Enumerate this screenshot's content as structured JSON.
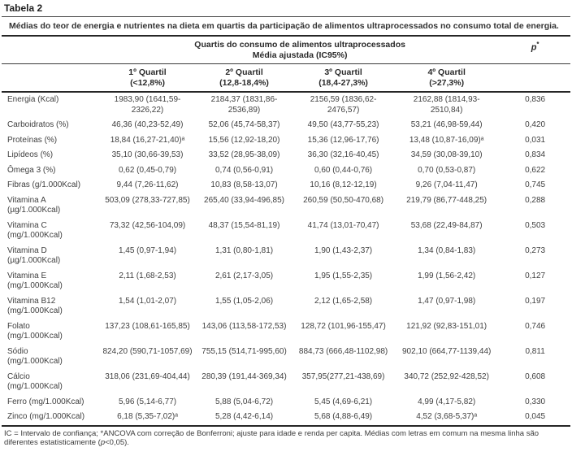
{
  "title": "Tabela 2",
  "caption": "Médias do teor de energia e nutrientes na dieta em quartis da participação de alimentos ultraprocessados no consumo total de energia.",
  "header": {
    "group_line1": "Quartis do consumo de alimentos ultraprocessados",
    "group_line2": "Média ajustada (IC95%)",
    "p_label": "p",
    "p_star": "*",
    "columns": [
      {
        "line1": "1º Quartil",
        "line2": "(<12,8%)"
      },
      {
        "line1": "2º Quartil",
        "line2": "(12,8-18,4%)"
      },
      {
        "line1": "3º Quartil",
        "line2": "(18,4-27,3%)"
      },
      {
        "line1": "4º Quartil",
        "line2": "(>27,3%)"
      }
    ]
  },
  "rows": [
    {
      "label": "Energia (Kcal)",
      "q1": "1983,90 (1641,59-\n2326,22)",
      "q2": "2184,37 (1831,86-\n2536,89)",
      "q3": "2156,59 (1836,62-\n2476,57)",
      "q4": "2162,88 (1814,93-\n2510,84)",
      "p": "0,836"
    },
    {
      "label": "Carboidratos (%)",
      "q1": "46,36 (40,23-52,49)",
      "q2": "52,06 (45,74-58,37)",
      "q3": "49,50 (43,77-55,23)",
      "q4": "53,21 (46,98-59,44)",
      "p": "0,420"
    },
    {
      "label": "Proteínas (%)",
      "q1": "18,84 (16,27-21,40)ᵃ",
      "q2": "15,56 (12,92-18,20)",
      "q3": "15,36 (12,96-17,76)",
      "q4": "13,48 (10,87-16,09)ᵃ",
      "p": "0,031"
    },
    {
      "label": "Lipídeos (%)",
      "q1": "35,10 (30,66-39,53)",
      "q2": "33,52 (28,95-38,09)",
      "q3": "36,30 (32,16-40,45)",
      "q4": "34,59 (30,08-39,10)",
      "p": "0,834"
    },
    {
      "label": "Ômega 3 (%)",
      "q1": "0,62 (0,45-0,79)",
      "q2": "0,74 (0,56-0,91)",
      "q3": "0,60 (0,44-0,76)",
      "q4": "0,70 (0,53-0,87)",
      "p": "0,622"
    },
    {
      "label": "Fibras (g/1.000Kcal)",
      "q1": "9,44 (7,26-11,62)",
      "q2": "10,83 (8,58-13,07)",
      "q3": "10,16 (8,12-12,19)",
      "q4": "9,26 (7,04-11,47)",
      "p": "0,745"
    },
    {
      "label": "Vitamina A\n(µg/1.000Kcal)",
      "q1": "503,09 (278,33-727,85)",
      "q2": "265,40 (33,94-496,85)",
      "q3": "260,59 (50,50-470,68)",
      "q4": "219,79 (86,77-448,25)",
      "p": "0,288"
    },
    {
      "label": "Vitamina C\n(mg/1.000Kcal)",
      "q1": "73,32 (42,56-104,09)",
      "q2": "48,37 (15,54-81,19)",
      "q3": "41,74 (13,01-70,47)",
      "q4": "53,68 (22,49-84,87)",
      "p": "0,503"
    },
    {
      "label": "Vitamina D\n(µg/1.000Kcal)",
      "q1": "1,45 (0,97-1,94)",
      "q2": "1,31 (0,80-1,81)",
      "q3": "1,90 (1,43-2,37)",
      "q4": "1,34 (0,84-1,83)",
      "p": "0,273"
    },
    {
      "label": "Vitamina E\n(mg/1.000Kcal)",
      "q1": "2,11 (1,68-2,53)",
      "q2": "2,61 (2,17-3,05)",
      "q3": "1,95 (1,55-2,35)",
      "q4": "1,99 (1,56-2,42)",
      "p": "0,127"
    },
    {
      "label": "Vitamina B12\n(mg/1.000Kcal)",
      "q1": "1,54 (1,01-2,07)",
      "q2": "1,55 (1,05-2,06)",
      "q3": "2,12 (1,65-2,58)",
      "q4": "1,47 (0,97-1,98)",
      "p": "0,197"
    },
    {
      "label": "Folato\n(mg/1.000Kcal)",
      "q1": "137,23 (108,61-165,85)",
      "q2": "143,06 (113,58-172,53)",
      "q3": "128,72 (101,96-155,47)",
      "q4": "121,92 (92,83-151,01)",
      "p": "0,746"
    },
    {
      "label": "Sódio\n(mg/1.000Kcal)",
      "q1": "824,20 (590,71-1057,69)",
      "q2": "755,15 (514,71-995,60)",
      "q3": "884,73 (666,48-1102,98)",
      "q4": "902,10 (664,77-1139,44)",
      "p": "0,811"
    },
    {
      "label": "Cálcio\n(mg/1.000Kcal)",
      "q1": "318,06 (231,69-404,44)",
      "q2": "280,39 (191,44-369,34)",
      "q3": "357,95(277,21-438,69)",
      "q4": "340,72 (252,92-428,52)",
      "p": "0,608"
    },
    {
      "label": "Ferro (mg/1.000Kcal)",
      "q1": "5,96 (5,14-6,77)",
      "q2": "5,88 (5,04-6,72)",
      "q3": "5,45 (4,69-6,21)",
      "q4": "4,99 (4,17-5,82)",
      "p": "0,330"
    },
    {
      "label": "Zinco (mg/1.000Kcal)",
      "q1": "6,18 (5,35-7,02)ᵃ",
      "q2": "5,28 (4,42-6,14)",
      "q3": "5,68 (4,88-6,49)",
      "q4": "4,52 (3,68-5,37)ᵃ",
      "p": "0,045"
    }
  ],
  "footnote": {
    "part1": "IC = Intervalo de confiança; *ANCOVA com correção de Bonferroni; ajuste para idade e renda per capita. Médias com letras em comum na mesma linha são diferentes estatisticamente (",
    "p_italic": "p",
    "part2": "<0,05)."
  },
  "colors": {
    "text": "#3f3f3f",
    "heading": "#1d1d1d",
    "rule": "#262626",
    "background": "#ffffff"
  }
}
